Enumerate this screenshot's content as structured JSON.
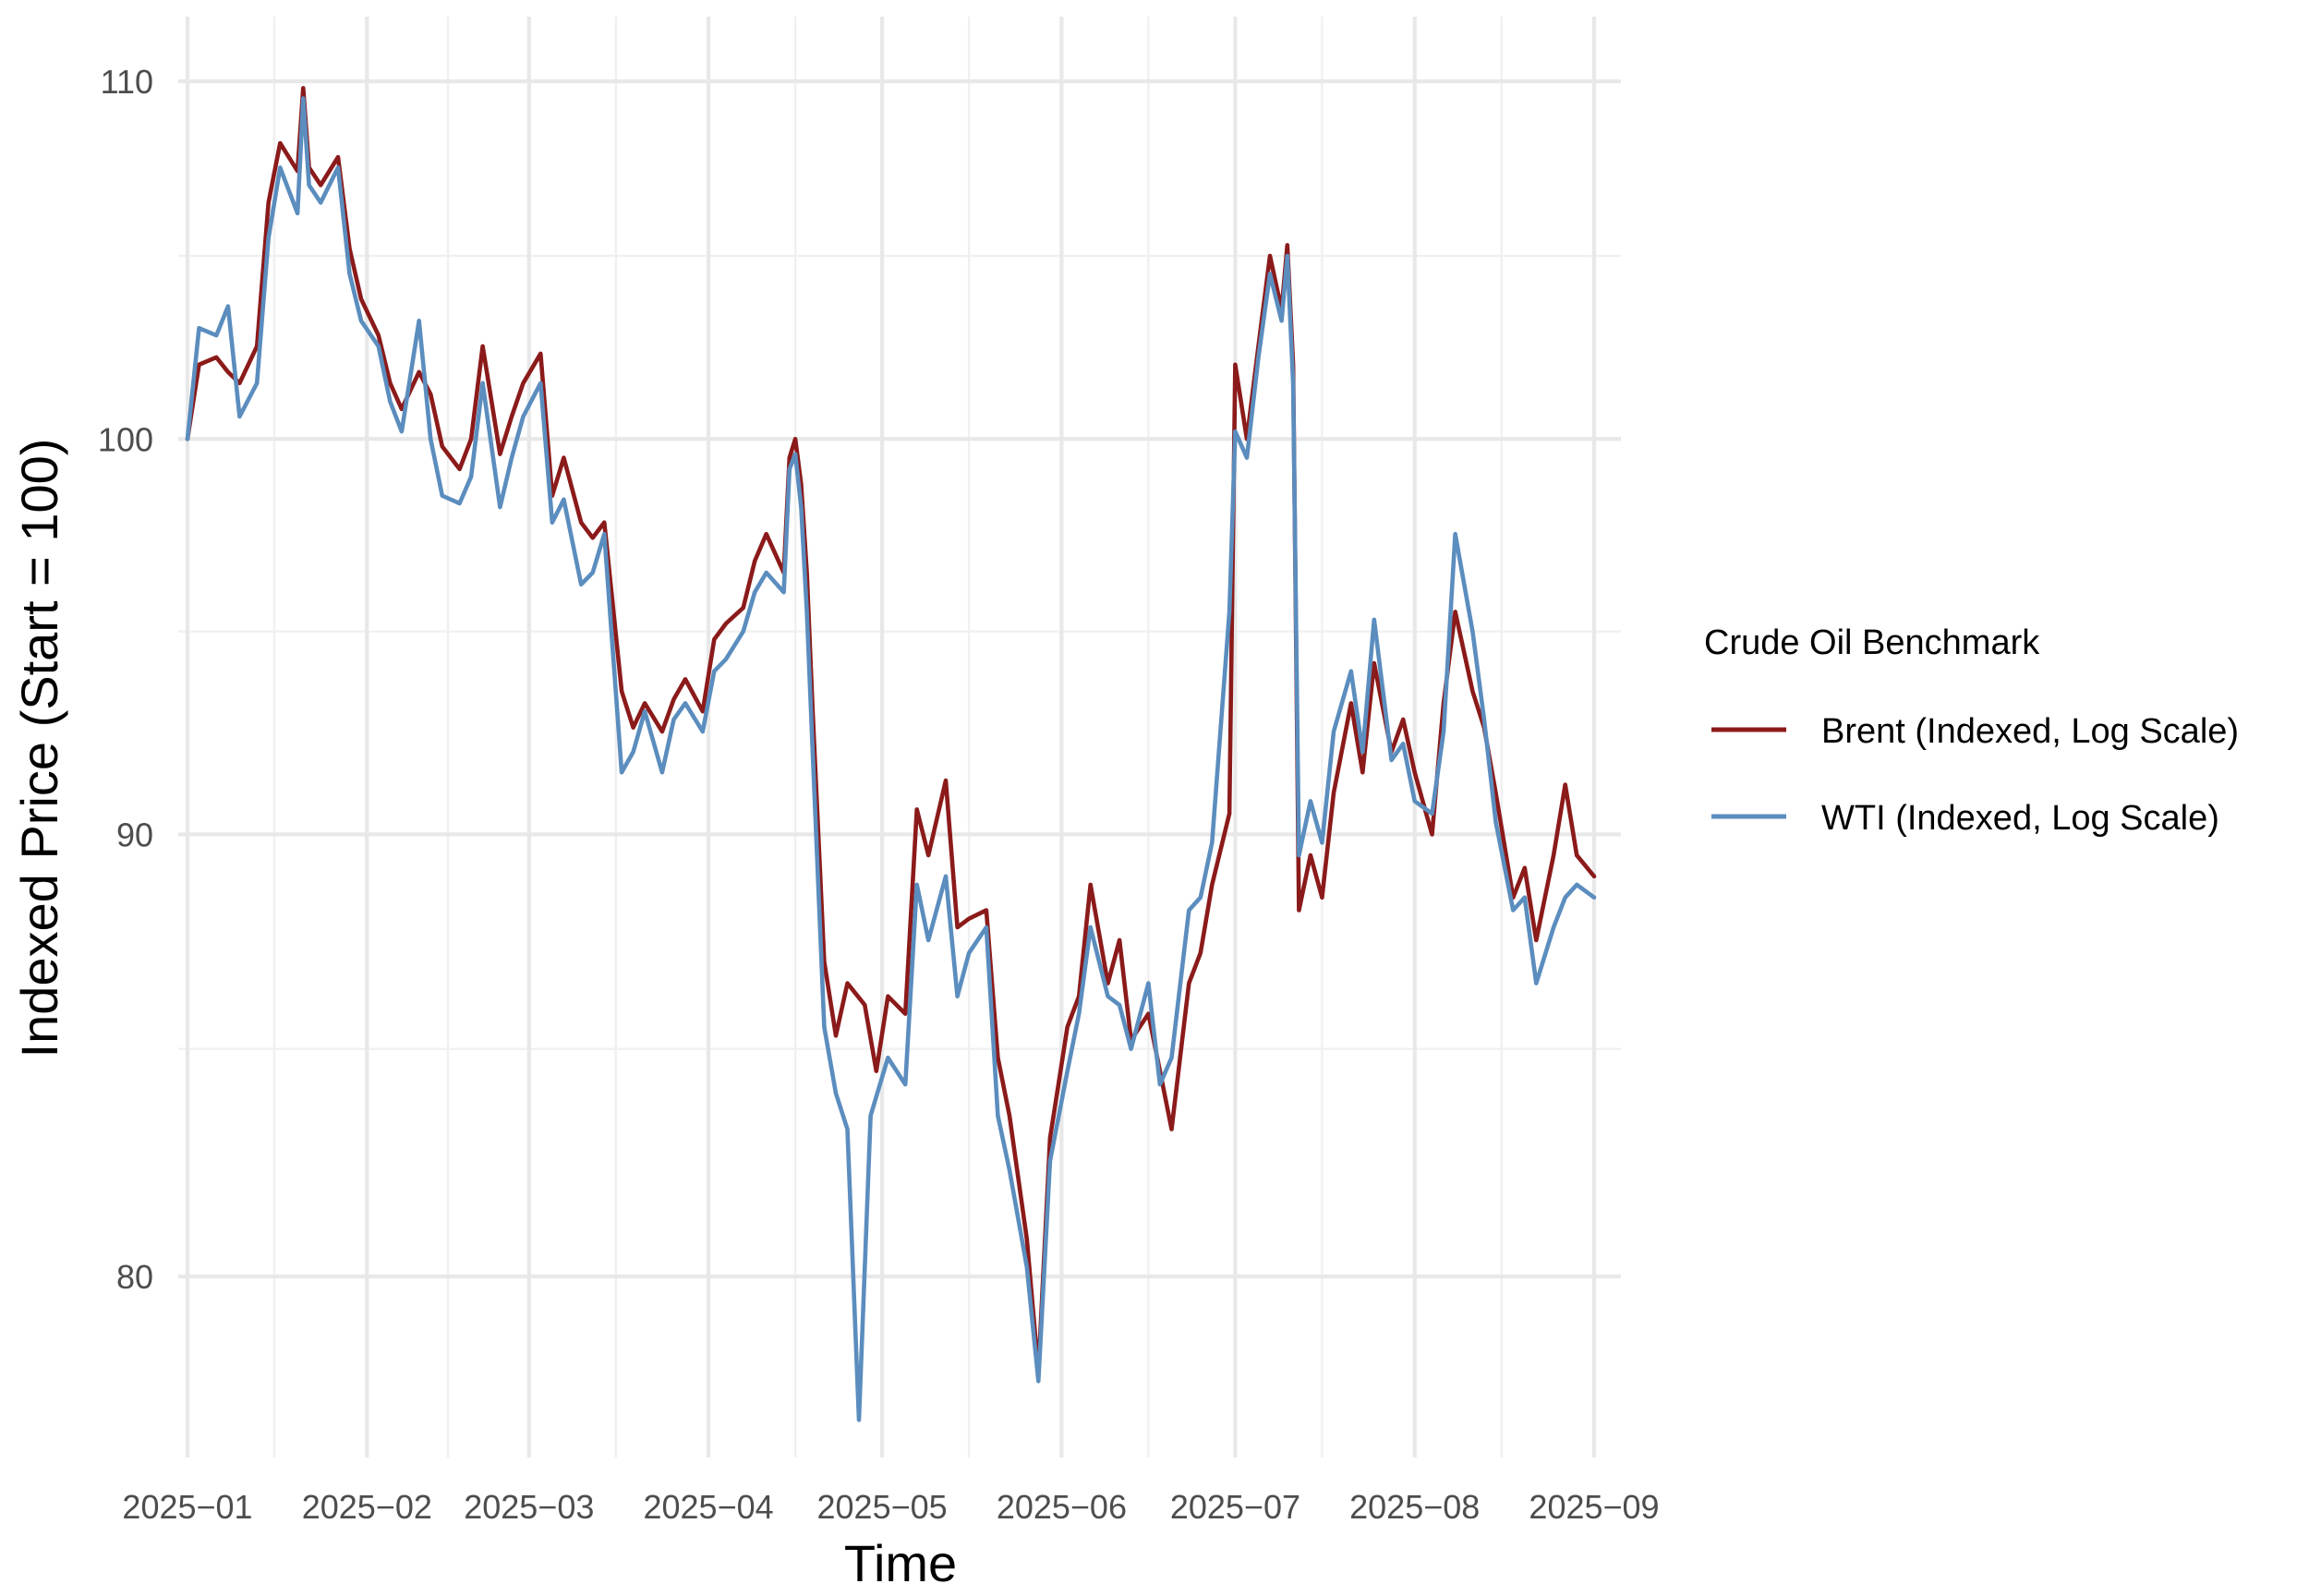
{
  "chart_data": {
    "type": "line",
    "title": "",
    "xlabel": "Time",
    "ylabel": "Indexed Price (Start = 100)",
    "y_scale": "log",
    "ylim": [
      75.6,
      112.8
    ],
    "xlim": [
      "2025-01-01",
      "2025-09-08"
    ],
    "y_ticks": [
      80,
      90,
      100,
      110
    ],
    "y_tick_labels": [
      "80",
      "90",
      "100",
      "110"
    ],
    "y_minor_ticks": [
      85,
      95,
      105
    ],
    "x_ticks": [
      "2025-01-01",
      "2025-02-01",
      "2025-03-01",
      "2025-04-01",
      "2025-05-01",
      "2025-06-01",
      "2025-07-01",
      "2025-08-01",
      "2025-09-01"
    ],
    "x_tick_labels": [
      "2025−01",
      "2025−02",
      "2025−03",
      "2025−04",
      "2025−05",
      "2025−06",
      "2025−07",
      "2025−08",
      "2025−09"
    ],
    "x_minor_ticks": [
      "2025-01-16",
      "2025-02-15",
      "2025-03-16",
      "2025-04-16",
      "2025-05-16",
      "2025-06-16",
      "2025-07-16",
      "2025-08-16"
    ],
    "grid": true,
    "legend": {
      "title": "Crude Oil Benchmark",
      "position": "right"
    },
    "series": [
      {
        "name": "Brent (Indexed, Log Scale)",
        "color": "#8B1A1A",
        "points": [
          [
            "2025-01-01",
            100.0
          ],
          [
            "2025-01-03",
            102.0
          ],
          [
            "2025-01-06",
            102.2
          ],
          [
            "2025-01-08",
            101.8
          ],
          [
            "2025-01-10",
            101.5
          ],
          [
            "2025-01-13",
            102.5
          ],
          [
            "2025-01-15",
            106.5
          ],
          [
            "2025-01-17",
            108.2
          ],
          [
            "2025-01-20",
            107.4
          ],
          [
            "2025-01-21",
            109.8
          ],
          [
            "2025-01-22",
            107.5
          ],
          [
            "2025-01-24",
            107.0
          ],
          [
            "2025-01-27",
            107.8
          ],
          [
            "2025-01-29",
            105.2
          ],
          [
            "2025-01-31",
            103.8
          ],
          [
            "2025-02-03",
            102.8
          ],
          [
            "2025-02-05",
            101.5
          ],
          [
            "2025-02-07",
            100.8
          ],
          [
            "2025-02-10",
            101.8
          ],
          [
            "2025-02-12",
            101.2
          ],
          [
            "2025-02-14",
            99.8
          ],
          [
            "2025-02-17",
            99.2
          ],
          [
            "2025-02-19",
            100.0
          ],
          [
            "2025-02-21",
            102.5
          ],
          [
            "2025-02-24",
            99.6
          ],
          [
            "2025-02-26",
            100.6
          ],
          [
            "2025-02-28",
            101.5
          ],
          [
            "2025-03-03",
            102.3
          ],
          [
            "2025-03-05",
            98.5
          ],
          [
            "2025-03-07",
            99.5
          ],
          [
            "2025-03-10",
            97.8
          ],
          [
            "2025-03-12",
            97.4
          ],
          [
            "2025-03-14",
            97.8
          ],
          [
            "2025-03-17",
            93.5
          ],
          [
            "2025-03-19",
            92.6
          ],
          [
            "2025-03-21",
            93.2
          ],
          [
            "2025-03-24",
            92.5
          ],
          [
            "2025-03-26",
            93.3
          ],
          [
            "2025-03-28",
            93.8
          ],
          [
            "2025-03-31",
            93.0
          ],
          [
            "2025-04-02",
            94.8
          ],
          [
            "2025-04-04",
            95.2
          ],
          [
            "2025-04-07",
            95.6
          ],
          [
            "2025-04-09",
            96.8
          ],
          [
            "2025-04-11",
            97.5
          ],
          [
            "2025-04-14",
            96.5
          ],
          [
            "2025-04-15",
            99.5
          ],
          [
            "2025-04-16",
            100.0
          ],
          [
            "2025-04-17",
            98.8
          ],
          [
            "2025-04-18",
            96.5
          ],
          [
            "2025-04-19",
            93.0
          ],
          [
            "2025-04-21",
            87.0
          ],
          [
            "2025-04-23",
            85.3
          ],
          [
            "2025-04-25",
            86.5
          ],
          [
            "2025-04-28",
            86.0
          ],
          [
            "2025-04-30",
            84.5
          ],
          [
            "2025-05-02",
            86.2
          ],
          [
            "2025-05-05",
            85.8
          ],
          [
            "2025-05-07",
            90.6
          ],
          [
            "2025-05-09",
            89.5
          ],
          [
            "2025-05-12",
            91.3
          ],
          [
            "2025-05-14",
            87.8
          ],
          [
            "2025-05-16",
            88.0
          ],
          [
            "2025-05-19",
            88.2
          ],
          [
            "2025-05-21",
            84.8
          ],
          [
            "2025-05-23",
            83.5
          ],
          [
            "2025-05-26",
            80.8
          ],
          [
            "2025-05-28",
            78.0
          ],
          [
            "2025-05-30",
            83.0
          ],
          [
            "2025-06-02",
            85.5
          ],
          [
            "2025-06-04",
            86.2
          ],
          [
            "2025-06-06",
            88.8
          ],
          [
            "2025-06-09",
            86.5
          ],
          [
            "2025-06-11",
            87.5
          ],
          [
            "2025-06-13",
            85.2
          ],
          [
            "2025-06-16",
            85.8
          ],
          [
            "2025-06-18",
            84.5
          ],
          [
            "2025-06-20",
            83.2
          ],
          [
            "2025-06-23",
            86.5
          ],
          [
            "2025-06-25",
            87.2
          ],
          [
            "2025-06-27",
            88.8
          ],
          [
            "2025-06-30",
            90.5
          ],
          [
            "2025-07-01",
            102.0
          ],
          [
            "2025-07-03",
            100.0
          ],
          [
            "2025-07-05",
            102.5
          ],
          [
            "2025-07-07",
            105.0
          ],
          [
            "2025-07-09",
            103.5
          ],
          [
            "2025-07-10",
            105.3
          ],
          [
            "2025-07-11",
            102.0
          ],
          [
            "2025-07-12",
            88.2
          ],
          [
            "2025-07-14",
            89.5
          ],
          [
            "2025-07-16",
            88.5
          ],
          [
            "2025-07-18",
            91.0
          ],
          [
            "2025-07-21",
            93.2
          ],
          [
            "2025-07-23",
            91.5
          ],
          [
            "2025-07-25",
            94.2
          ],
          [
            "2025-07-28",
            92.0
          ],
          [
            "2025-07-30",
            92.8
          ],
          [
            "2025-08-01",
            91.5
          ],
          [
            "2025-08-04",
            90.0
          ],
          [
            "2025-08-06",
            93.2
          ],
          [
            "2025-08-08",
            95.5
          ],
          [
            "2025-08-11",
            93.5
          ],
          [
            "2025-08-13",
            92.6
          ],
          [
            "2025-08-15",
            91.0
          ],
          [
            "2025-08-18",
            88.5
          ],
          [
            "2025-08-20",
            89.2
          ],
          [
            "2025-08-22",
            87.5
          ],
          [
            "2025-08-25",
            89.5
          ],
          [
            "2025-08-27",
            91.2
          ],
          [
            "2025-08-29",
            89.5
          ],
          [
            "2025-09-01",
            89.0
          ]
        ]
      },
      {
        "name": "WTI (Indexed, Log Scale)",
        "color": "#5B8DBE",
        "points": [
          [
            "2025-01-01",
            100.0
          ],
          [
            "2025-01-03",
            103.0
          ],
          [
            "2025-01-06",
            102.8
          ],
          [
            "2025-01-08",
            103.6
          ],
          [
            "2025-01-10",
            100.6
          ],
          [
            "2025-01-13",
            101.5
          ],
          [
            "2025-01-15",
            105.5
          ],
          [
            "2025-01-17",
            107.5
          ],
          [
            "2025-01-20",
            106.2
          ],
          [
            "2025-01-21",
            109.5
          ],
          [
            "2025-01-22",
            107.0
          ],
          [
            "2025-01-24",
            106.5
          ],
          [
            "2025-01-27",
            107.5
          ],
          [
            "2025-01-29",
            104.5
          ],
          [
            "2025-01-31",
            103.2
          ],
          [
            "2025-02-03",
            102.5
          ],
          [
            "2025-02-05",
            101.0
          ],
          [
            "2025-02-07",
            100.2
          ],
          [
            "2025-02-10",
            103.2
          ],
          [
            "2025-02-12",
            100.0
          ],
          [
            "2025-02-14",
            98.5
          ],
          [
            "2025-02-17",
            98.3
          ],
          [
            "2025-02-19",
            99.0
          ],
          [
            "2025-02-21",
            101.5
          ],
          [
            "2025-02-24",
            98.2
          ],
          [
            "2025-02-26",
            99.5
          ],
          [
            "2025-02-28",
            100.6
          ],
          [
            "2025-03-03",
            101.5
          ],
          [
            "2025-03-05",
            97.8
          ],
          [
            "2025-03-07",
            98.4
          ],
          [
            "2025-03-10",
            96.2
          ],
          [
            "2025-03-12",
            96.5
          ],
          [
            "2025-03-14",
            97.5
          ],
          [
            "2025-03-17",
            91.5
          ],
          [
            "2025-03-19",
            92.0
          ],
          [
            "2025-03-21",
            93.0
          ],
          [
            "2025-03-24",
            91.5
          ],
          [
            "2025-03-26",
            92.8
          ],
          [
            "2025-03-28",
            93.2
          ],
          [
            "2025-03-31",
            92.5
          ],
          [
            "2025-04-02",
            94.0
          ],
          [
            "2025-04-04",
            94.3
          ],
          [
            "2025-04-07",
            95.0
          ],
          [
            "2025-04-09",
            96.0
          ],
          [
            "2025-04-11",
            96.5
          ],
          [
            "2025-04-14",
            96.0
          ],
          [
            "2025-04-15",
            99.2
          ],
          [
            "2025-04-16",
            99.6
          ],
          [
            "2025-04-17",
            98.2
          ],
          [
            "2025-04-18",
            95.5
          ],
          [
            "2025-04-19",
            92.0
          ],
          [
            "2025-04-21",
            85.5
          ],
          [
            "2025-04-23",
            84.0
          ],
          [
            "2025-04-25",
            83.2
          ],
          [
            "2025-04-27",
            77.0
          ],
          [
            "2025-04-29",
            83.5
          ],
          [
            "2025-05-02",
            84.8
          ],
          [
            "2025-05-05",
            84.2
          ],
          [
            "2025-05-07",
            88.8
          ],
          [
            "2025-05-09",
            87.5
          ],
          [
            "2025-05-12",
            89.0
          ],
          [
            "2025-05-14",
            86.2
          ],
          [
            "2025-05-16",
            87.2
          ],
          [
            "2025-05-19",
            87.8
          ],
          [
            "2025-05-21",
            83.5
          ],
          [
            "2025-05-23",
            82.3
          ],
          [
            "2025-05-26",
            80.2
          ],
          [
            "2025-05-28",
            77.8
          ],
          [
            "2025-05-30",
            82.5
          ],
          [
            "2025-06-02",
            84.5
          ],
          [
            "2025-06-04",
            85.8
          ],
          [
            "2025-06-06",
            87.8
          ],
          [
            "2025-06-09",
            86.2
          ],
          [
            "2025-06-11",
            86.0
          ],
          [
            "2025-06-13",
            85.0
          ],
          [
            "2025-06-16",
            86.5
          ],
          [
            "2025-06-18",
            84.2
          ],
          [
            "2025-06-20",
            84.8
          ],
          [
            "2025-06-23",
            88.2
          ],
          [
            "2025-06-25",
            88.5
          ],
          [
            "2025-06-27",
            89.8
          ],
          [
            "2025-06-30",
            95.5
          ],
          [
            "2025-07-01",
            100.2
          ],
          [
            "2025-07-03",
            99.5
          ],
          [
            "2025-07-05",
            102.2
          ],
          [
            "2025-07-07",
            104.5
          ],
          [
            "2025-07-09",
            103.2
          ],
          [
            "2025-07-10",
            105.0
          ],
          [
            "2025-07-11",
            101.5
          ],
          [
            "2025-07-12",
            89.5
          ],
          [
            "2025-07-14",
            90.8
          ],
          [
            "2025-07-16",
            89.8
          ],
          [
            "2025-07-18",
            92.5
          ],
          [
            "2025-07-21",
            94.0
          ],
          [
            "2025-07-23",
            92.0
          ],
          [
            "2025-07-25",
            95.3
          ],
          [
            "2025-07-28",
            91.8
          ],
          [
            "2025-07-30",
            92.2
          ],
          [
            "2025-08-01",
            90.8
          ],
          [
            "2025-08-04",
            90.5
          ],
          [
            "2025-08-06",
            92.5
          ],
          [
            "2025-08-08",
            97.5
          ],
          [
            "2025-08-11",
            95.0
          ],
          [
            "2025-08-13",
            92.8
          ],
          [
            "2025-08-15",
            90.3
          ],
          [
            "2025-08-18",
            88.2
          ],
          [
            "2025-08-20",
            88.5
          ],
          [
            "2025-08-22",
            86.5
          ],
          [
            "2025-08-25",
            87.8
          ],
          [
            "2025-08-27",
            88.5
          ],
          [
            "2025-08-29",
            88.8
          ],
          [
            "2025-09-01",
            88.5
          ]
        ]
      }
    ]
  }
}
